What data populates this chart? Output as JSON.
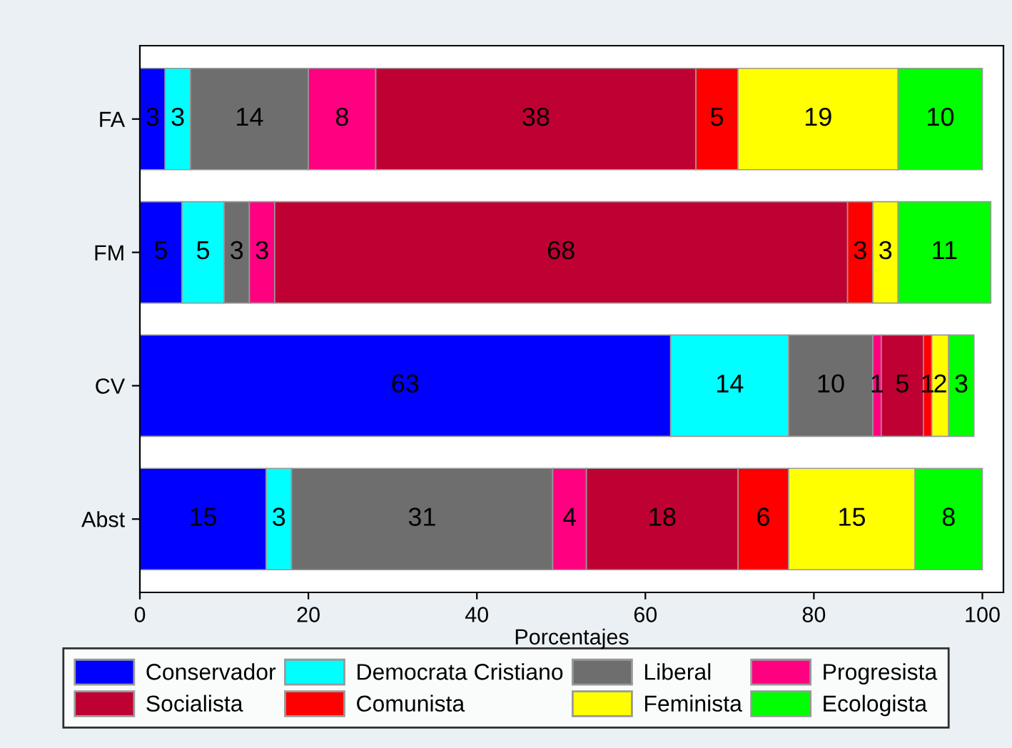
{
  "chart_data": {
    "type": "bar",
    "orientation": "horizontal",
    "stacked": true,
    "xlabel": "Porcentajes",
    "categories": [
      "FA",
      "FM",
      "CV",
      "Abst"
    ],
    "series": [
      {
        "name": "Conservador",
        "color": "#0000ff",
        "values": [
          3,
          5,
          63,
          15
        ]
      },
      {
        "name": "Democrata Cristiano",
        "color": "#00ffff",
        "values": [
          3,
          5,
          14,
          3
        ]
      },
      {
        "name": "Liberal",
        "color": "#6e6e6e",
        "values": [
          14,
          3,
          10,
          31
        ]
      },
      {
        "name": "Progresista",
        "color": "#ff0080",
        "values": [
          8,
          3,
          1,
          4
        ]
      },
      {
        "name": "Socialista",
        "color": "#be0032",
        "values": [
          38,
          68,
          5,
          18
        ]
      },
      {
        "name": "Comunista",
        "color": "#ff0000",
        "values": [
          5,
          3,
          1,
          6
        ]
      },
      {
        "name": "Feminista",
        "color": "#ffff00",
        "values": [
          19,
          3,
          2,
          15
        ]
      },
      {
        "name": "Ecologista",
        "color": "#00ff00",
        "values": [
          10,
          11,
          3,
          8
        ]
      }
    ],
    "xlim": [
      0,
      102.5
    ],
    "xticks": [
      0,
      20,
      40,
      60,
      80,
      100
    ],
    "data_labels": true,
    "legend": "bottom",
    "grid": false
  }
}
